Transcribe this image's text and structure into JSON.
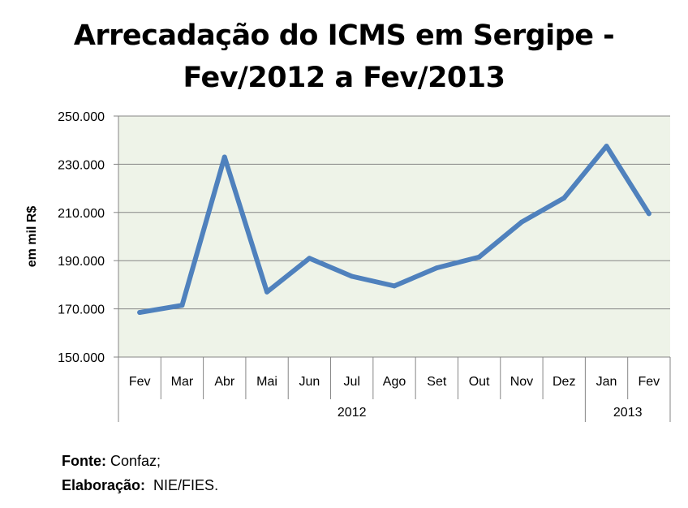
{
  "chart_data": {
    "type": "line",
    "title_lines": [
      "Arrecadação do ICMS em Sergipe -",
      "Fev/2012 a Fev/2013"
    ],
    "ylabel": "em mil R$",
    "xlabel": "",
    "categories": [
      "Fev",
      "Mar",
      "Abr",
      "Mai",
      "Jun",
      "Jul",
      "Ago",
      "Set",
      "Out",
      "Nov",
      "Dez",
      "Jan",
      "Fev"
    ],
    "year_groups": [
      {
        "label": "2012",
        "count": 11
      },
      {
        "label": "2013",
        "count": 2
      }
    ],
    "series": [
      {
        "values": [
          168500,
          171500,
          233000,
          177000,
          191000,
          183500,
          179500,
          187000,
          191500,
          206000,
          216000,
          237500,
          209500
        ],
        "color": "#4F81BD"
      }
    ],
    "ylim": [
      150000,
      250000
    ],
    "yticks": [
      150000,
      170000,
      190000,
      210000,
      230000,
      250000
    ],
    "ytick_labels": [
      "150.000",
      "170.000",
      "190.000",
      "210.000",
      "230.000",
      "250.000"
    ],
    "grid": true,
    "plot_background": "#EEF3E8"
  },
  "footer": {
    "source_label": "Fonte:",
    "source_value": " Confaz;",
    "credit_label": "Elaboração:",
    "credit_value": "  NIE/FIES."
  }
}
